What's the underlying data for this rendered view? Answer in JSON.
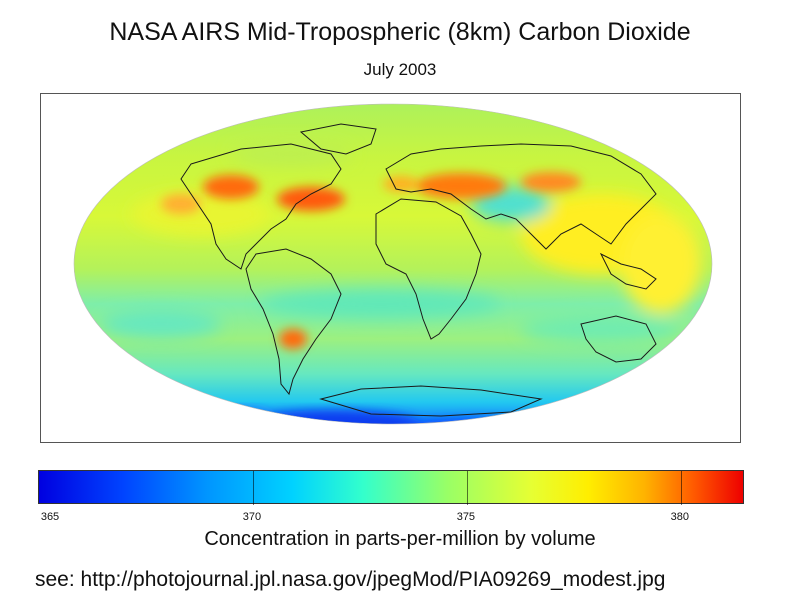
{
  "title": "NASA AIRS Mid-Tropospheric (8km) Carbon Dioxide",
  "subtitle": "July 2003",
  "colorbar": {
    "min": 365,
    "max": 381.5,
    "ticks": [
      "365",
      "370",
      "375",
      "380"
    ],
    "label": "Concentration in parts-per-million by volume",
    "colors": [
      "#0000e0",
      "#0096ff",
      "#33ffcc",
      "#e6ff33",
      "#ffb300",
      "#ee0000"
    ]
  },
  "source": "see: http://photojournal.jpl.nasa.gov/jpegMod/PIA09269_modest.jpg"
}
